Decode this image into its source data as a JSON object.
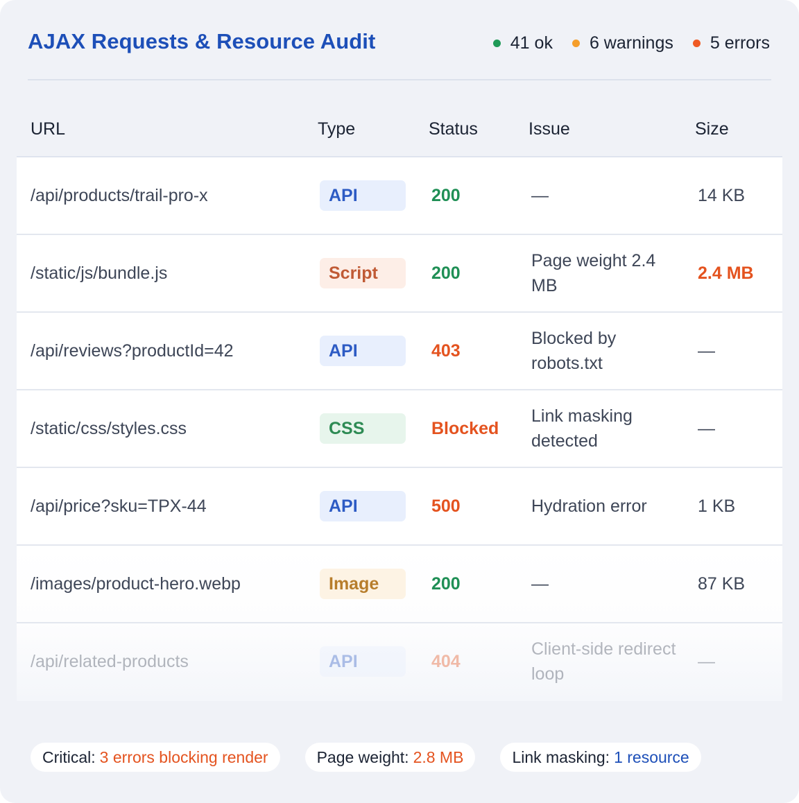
{
  "header": {
    "title": "AJAX Requests & Resource Audit",
    "legend": [
      {
        "label": "41 ok",
        "color": "#1f9a57"
      },
      {
        "label": "6 warnings",
        "color": "#f59e2b"
      },
      {
        "label": "5 errors",
        "color": "#ef5a24"
      }
    ]
  },
  "table": {
    "columns": [
      "URL",
      "Type",
      "Status",
      "Issue",
      "Size"
    ],
    "rows": [
      {
        "url": "/api/products/trail-pro-x",
        "type": "API",
        "status": "200",
        "issue": "—",
        "size": "14 KB"
      },
      {
        "url": "/static/js/bundle.js",
        "type": "Script",
        "status": "200",
        "issue": "Page weight 2.4 MB",
        "size": "2.4 MB"
      },
      {
        "url": "/api/reviews?productId=42",
        "type": "API",
        "status": "403",
        "issue": "Blocked by robots.txt",
        "size": "—"
      },
      {
        "url": "/static/css/styles.css",
        "type": "CSS",
        "status": "Blocked",
        "issue": "Link masking detected",
        "size": "—"
      },
      {
        "url": "/api/price?sku=TPX-44",
        "type": "API",
        "status": "500",
        "issue": "Hydration error",
        "size": "1 KB"
      },
      {
        "url": "/images/product-hero.webp",
        "type": "Image",
        "status": "200",
        "issue": "—",
        "size": "87 KB"
      },
      {
        "url": "/api/related-products",
        "type": "API",
        "status": "404",
        "issue": "Client-side redirect loop",
        "size": "—"
      }
    ]
  },
  "footer": {
    "critical": {
      "label": "Critical:",
      "value": "3 errors blocking render"
    },
    "page_weight": {
      "label": "Page weight:",
      "value": "2.8 MB"
    },
    "link_masking": {
      "label": "Link masking:",
      "value": "1 resource"
    }
  }
}
